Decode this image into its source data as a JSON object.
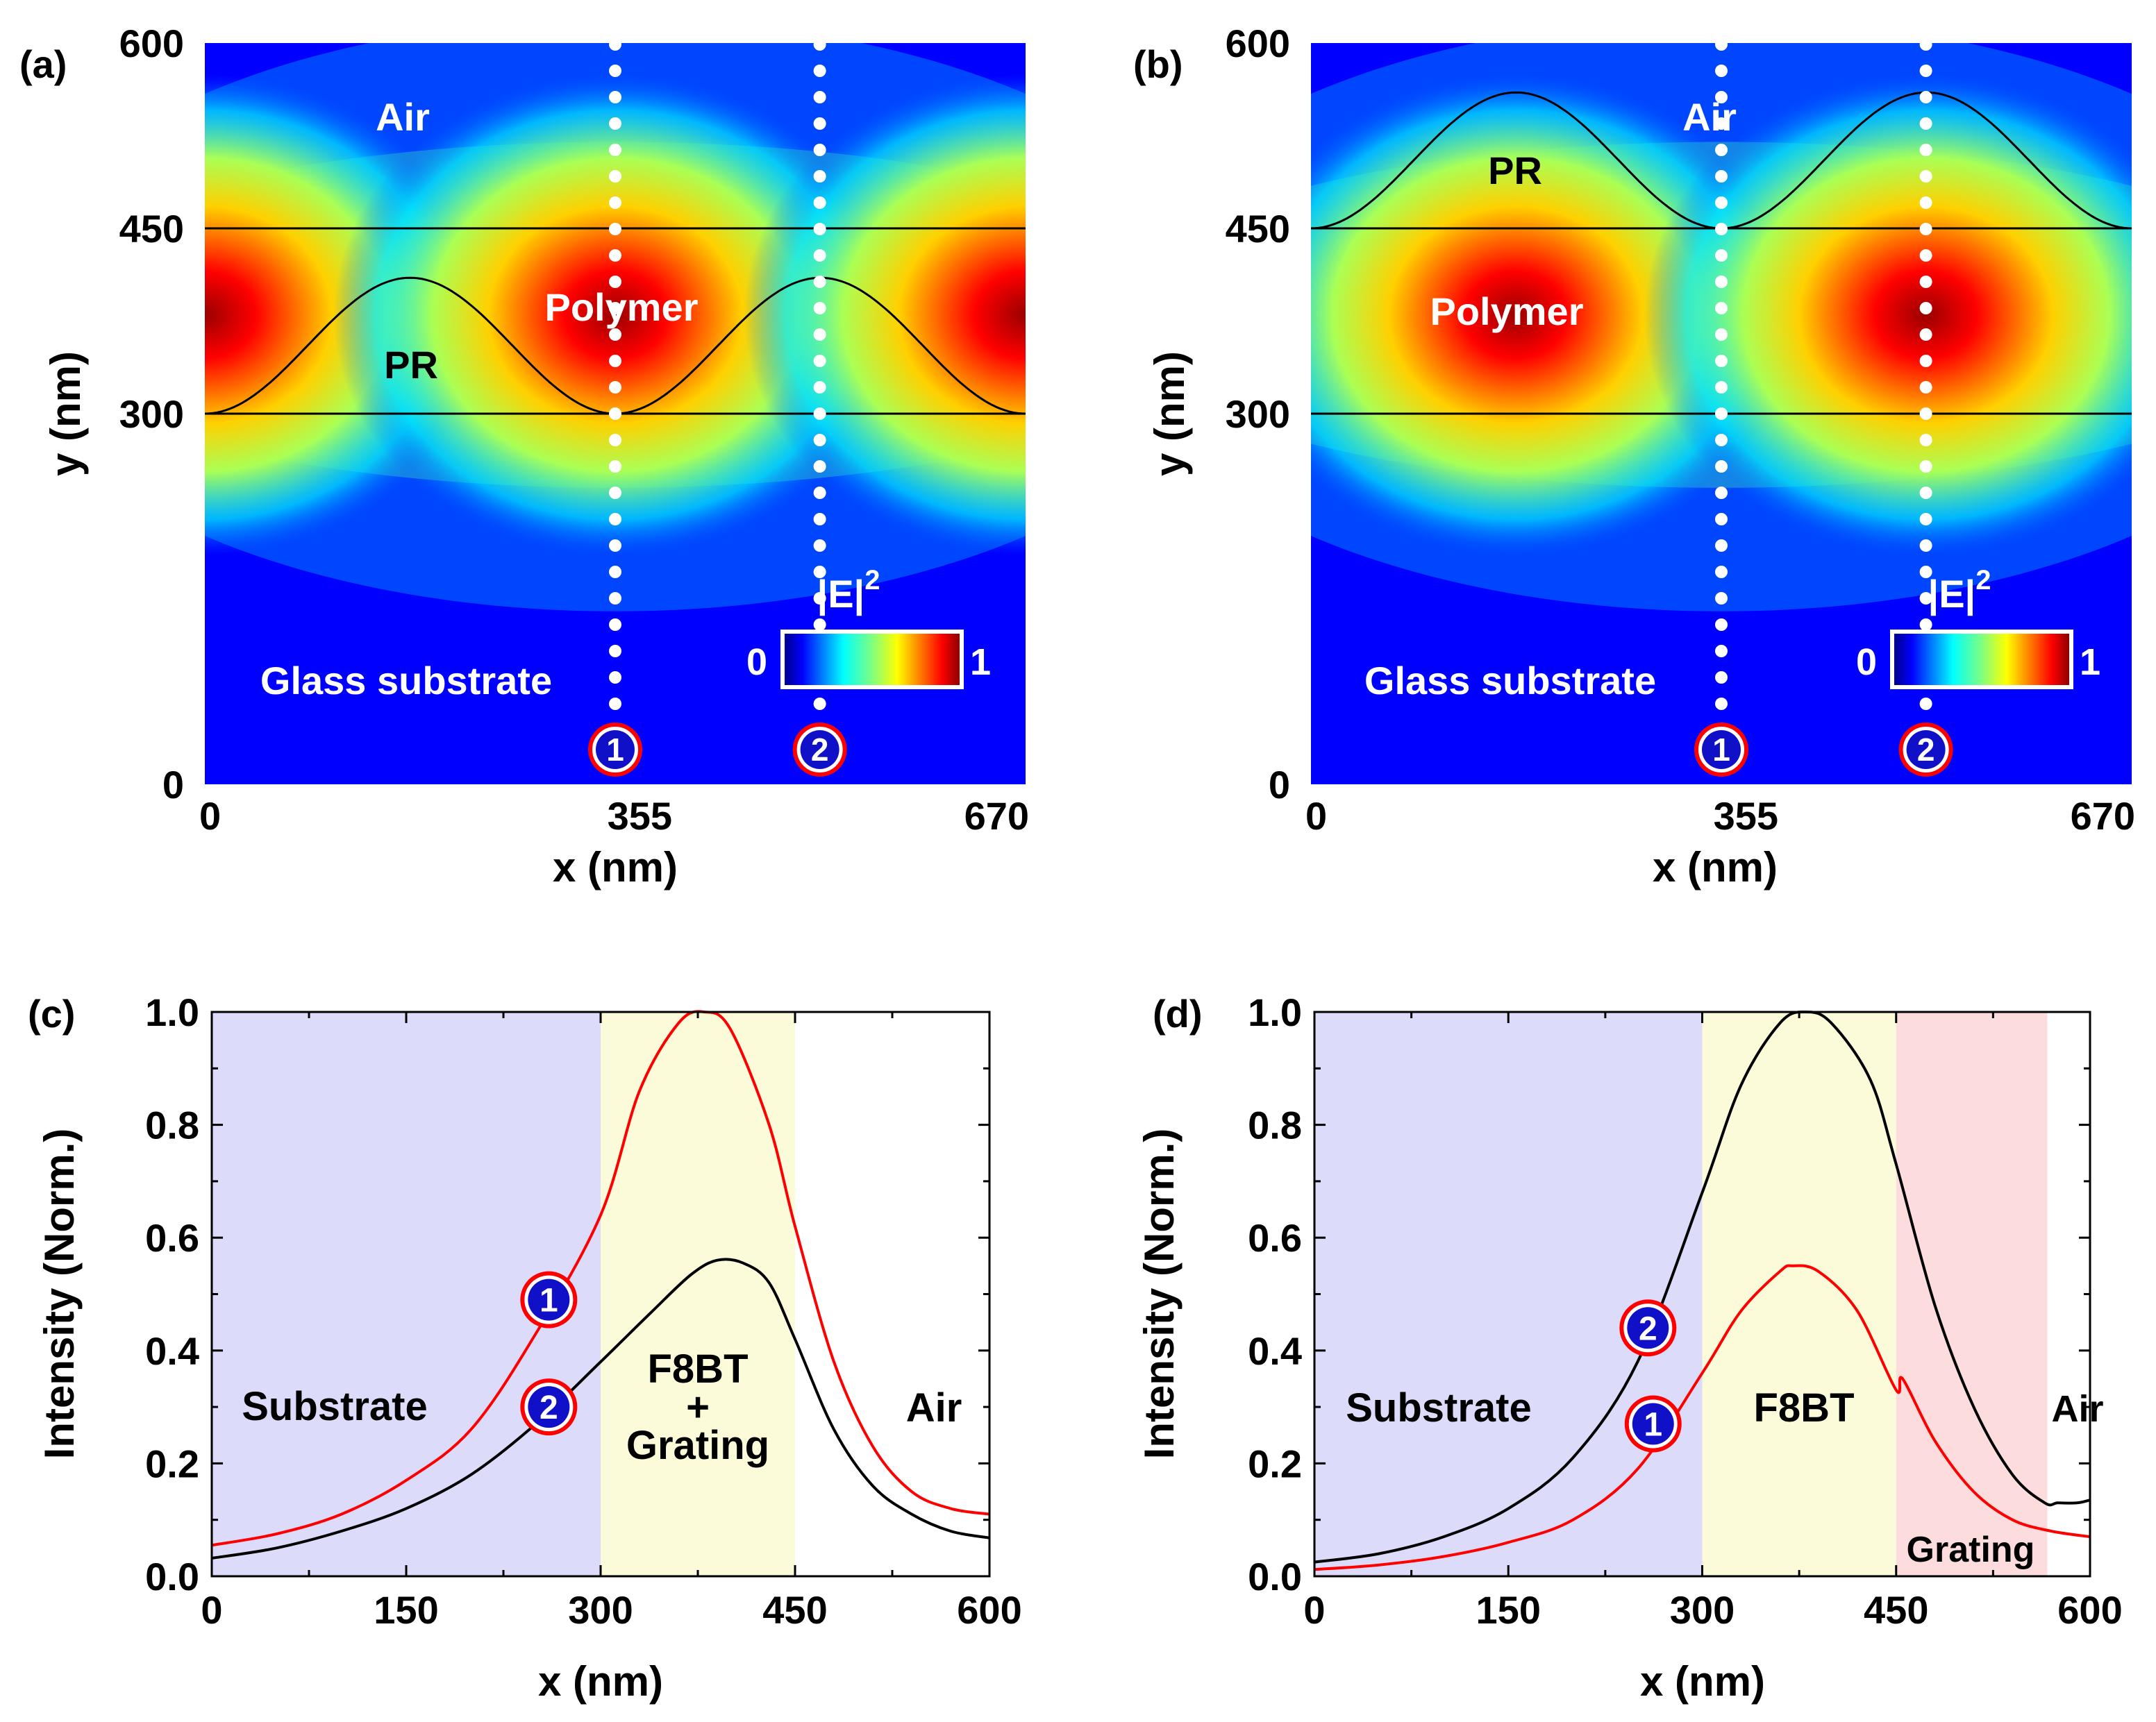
{
  "chart_data": [
    {
      "panel": "(a)",
      "type": "heatmap",
      "xlabel": "x (nm)",
      "ylabel": "y (nm)",
      "xlim": [
        0,
        670
      ],
      "ylim": [
        0,
        600
      ],
      "xticks": [
        "0",
        "355",
        "670"
      ],
      "yticks": [
        "0",
        "300",
        "450",
        "600"
      ],
      "colorbar": {
        "label": "|E|",
        "exponent": "2",
        "min_label": "0",
        "max_label": "1"
      },
      "region_labels": {
        "air": "Air",
        "pr": "PR",
        "polymer": "Polymer",
        "substrate": "Glass substrate"
      },
      "interfaces_y": [
        300,
        450
      ],
      "grating": {
        "base_y": 300,
        "peak_y": 410,
        "period": 335
      },
      "field": {
        "center_y": 380,
        "lobe_x": [
          0,
          335,
          670
        ]
      },
      "cut_lines": [
        {
          "x": 335,
          "marker": "1"
        },
        {
          "x": 502,
          "marker": "2"
        }
      ]
    },
    {
      "panel": "(b)",
      "type": "heatmap",
      "xlabel": "x (nm)",
      "ylabel": "y (nm)",
      "xlim": [
        0,
        670
      ],
      "ylim": [
        0,
        600
      ],
      "xticks": [
        "0",
        "355",
        "670"
      ],
      "yticks": [
        "0",
        "300",
        "450",
        "600"
      ],
      "colorbar": {
        "label": "|E|",
        "exponent": "2",
        "min_label": "0",
        "max_label": "1"
      },
      "region_labels": {
        "air": "Air",
        "pr": "PR",
        "polymer": "Polymer",
        "substrate": "Glass substrate"
      },
      "interfaces_y": [
        300,
        450
      ],
      "grating": {
        "base_y": 450,
        "peak_y": 560,
        "period": 335
      },
      "field": {
        "center_y": 380,
        "lobe_x": [
          167,
          502
        ]
      },
      "cut_lines": [
        {
          "x": 335,
          "marker": "1"
        },
        {
          "x": 502,
          "marker": "2"
        }
      ]
    },
    {
      "panel": "(c)",
      "type": "line",
      "xlabel": "x (nm)",
      "ylabel": "Intensity (Norm.)",
      "xlim": [
        0,
        600
      ],
      "ylim": [
        0,
        1.0
      ],
      "xticks": [
        "0",
        "150",
        "300",
        "450",
        "600"
      ],
      "yticks": [
        "0.0",
        "0.2",
        "0.4",
        "0.6",
        "0.8",
        "1.0"
      ],
      "regions": [
        {
          "from": 0,
          "to": 300,
          "color": "#dcdcfa",
          "label": "Substrate"
        },
        {
          "from": 300,
          "to": 450,
          "color": "#fbfbd9",
          "label": "F8BT\n+\nGrating"
        },
        {
          "from": 450,
          "to": 600,
          "color": "#ffffff",
          "label": "Air"
        }
      ],
      "series": [
        {
          "name": "1",
          "color": "#ff0000",
          "x": [
            0,
            50,
            100,
            150,
            200,
            250,
            300,
            330,
            360,
            380,
            400,
            430,
            450,
            480,
            510,
            540,
            570,
            600
          ],
          "y": [
            0.055,
            0.075,
            0.11,
            0.17,
            0.26,
            0.43,
            0.64,
            0.86,
            0.98,
            1.0,
            0.97,
            0.8,
            0.62,
            0.38,
            0.23,
            0.15,
            0.12,
            0.11
          ]
        },
        {
          "name": "2",
          "color": "#000000",
          "x": [
            0,
            50,
            100,
            150,
            200,
            250,
            300,
            340,
            370,
            390,
            410,
            430,
            450,
            480,
            510,
            540,
            570,
            600
          ],
          "y": [
            0.032,
            0.05,
            0.08,
            0.12,
            0.18,
            0.27,
            0.38,
            0.47,
            0.535,
            0.56,
            0.555,
            0.52,
            0.42,
            0.26,
            0.16,
            0.11,
            0.08,
            0.068
          ]
        }
      ],
      "markers": [
        {
          "label": "1",
          "x": 260,
          "y": 0.49
        },
        {
          "label": "2",
          "x": 260,
          "y": 0.3
        }
      ]
    },
    {
      "panel": "(d)",
      "type": "line",
      "xlabel": "x (nm)",
      "ylabel": "Intensity (Norm.)",
      "xlim": [
        0,
        600
      ],
      "ylim": [
        0,
        1.0
      ],
      "xticks": [
        "0",
        "150",
        "300",
        "450",
        "600"
      ],
      "yticks": [
        "0.0",
        "0.2",
        "0.4",
        "0.6",
        "0.8",
        "1.0"
      ],
      "regions": [
        {
          "from": 0,
          "to": 300,
          "color": "#dcdcfa",
          "label": "Substrate"
        },
        {
          "from": 300,
          "to": 450,
          "color": "#fbfbd9",
          "label": "F8BT"
        },
        {
          "from": 450,
          "to": 567,
          "color": "#fcdcdc",
          "label": "Grating"
        },
        {
          "from": 567,
          "to": 600,
          "color": "#ffffff",
          "label": "Air"
        }
      ],
      "series": [
        {
          "name": "2",
          "color": "#000000",
          "x": [
            0,
            50,
            100,
            150,
            200,
            250,
            300,
            330,
            360,
            380,
            400,
            430,
            450,
            480,
            510,
            540,
            565,
            575,
            590,
            600
          ],
          "y": [
            0.025,
            0.04,
            0.07,
            0.12,
            0.21,
            0.38,
            0.68,
            0.87,
            0.98,
            1.0,
            0.98,
            0.88,
            0.73,
            0.48,
            0.3,
            0.18,
            0.13,
            0.13,
            0.13,
            0.135
          ]
        },
        {
          "name": "1",
          "color": "#ff0000",
          "x": [
            0,
            50,
            100,
            150,
            200,
            250,
            300,
            330,
            360,
            370,
            390,
            420,
            450,
            455,
            480,
            510,
            540,
            570,
            600
          ],
          "y": [
            0.012,
            0.02,
            0.035,
            0.06,
            0.1,
            0.19,
            0.36,
            0.47,
            0.54,
            0.55,
            0.54,
            0.47,
            0.33,
            0.35,
            0.24,
            0.15,
            0.1,
            0.08,
            0.07
          ]
        }
      ],
      "markers": [
        {
          "label": "2",
          "x": 258,
          "y": 0.44
        },
        {
          "label": "1",
          "x": 262,
          "y": 0.27
        }
      ]
    }
  ]
}
